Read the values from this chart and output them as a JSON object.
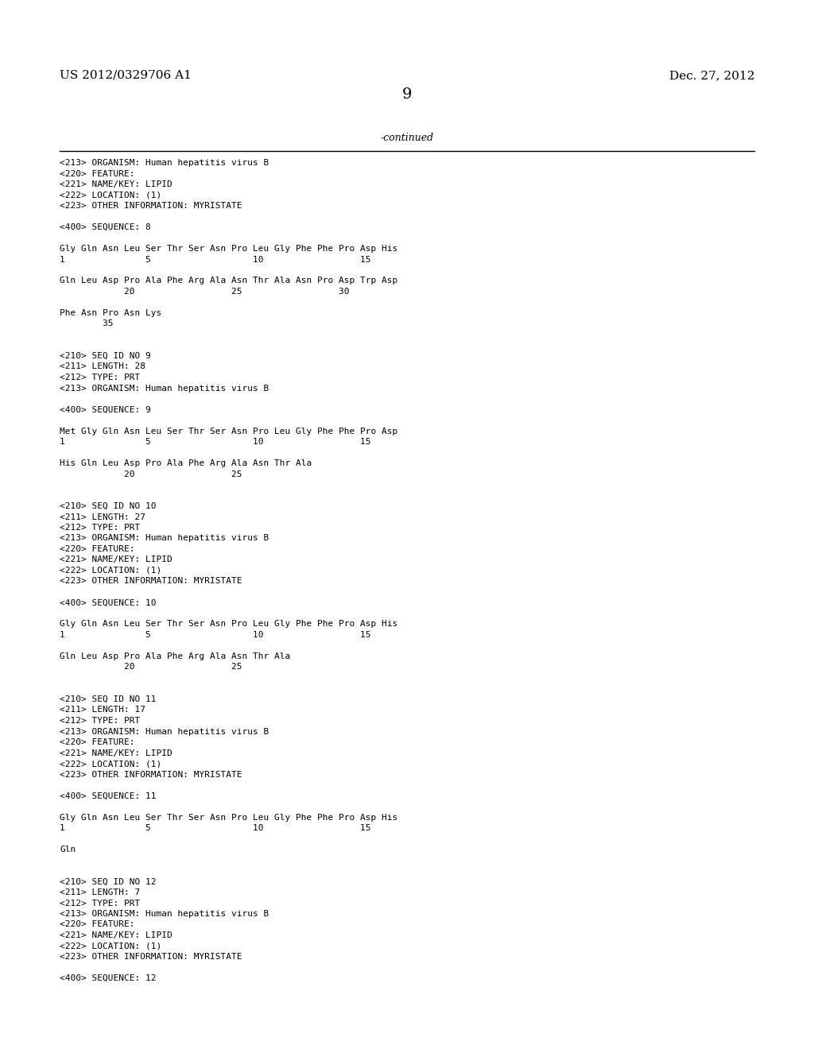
{
  "background_color": "#ffffff",
  "header_left": "US 2012/0329706 A1",
  "header_right": "Dec. 27, 2012",
  "page_number": "9",
  "continued_label": "-continued",
  "lines": [
    "<213> ORGANISM: Human hepatitis virus B",
    "<220> FEATURE:",
    "<221> NAME/KEY: LIPID",
    "<222> LOCATION: (1)",
    "<223> OTHER INFORMATION: MYRISTATE",
    "",
    "<400> SEQUENCE: 8",
    "",
    "Gly Gln Asn Leu Ser Thr Ser Asn Pro Leu Gly Phe Phe Pro Asp His",
    "1               5                   10                  15",
    "",
    "Gln Leu Asp Pro Ala Phe Arg Ala Asn Thr Ala Asn Pro Asp Trp Asp",
    "            20                  25                  30",
    "",
    "Phe Asn Pro Asn Lys",
    "        35",
    "",
    "",
    "<210> SEQ ID NO 9",
    "<211> LENGTH: 28",
    "<212> TYPE: PRT",
    "<213> ORGANISM: Human hepatitis virus B",
    "",
    "<400> SEQUENCE: 9",
    "",
    "Met Gly Gln Asn Leu Ser Thr Ser Asn Pro Leu Gly Phe Phe Pro Asp",
    "1               5                   10                  15",
    "",
    "His Gln Leu Asp Pro Ala Phe Arg Ala Asn Thr Ala",
    "            20                  25",
    "",
    "",
    "<210> SEQ ID NO 10",
    "<211> LENGTH: 27",
    "<212> TYPE: PRT",
    "<213> ORGANISM: Human hepatitis virus B",
    "<220> FEATURE:",
    "<221> NAME/KEY: LIPID",
    "<222> LOCATION: (1)",
    "<223> OTHER INFORMATION: MYRISTATE",
    "",
    "<400> SEQUENCE: 10",
    "",
    "Gly Gln Asn Leu Ser Thr Ser Asn Pro Leu Gly Phe Phe Pro Asp His",
    "1               5                   10                  15",
    "",
    "Gln Leu Asp Pro Ala Phe Arg Ala Asn Thr Ala",
    "            20                  25",
    "",
    "",
    "<210> SEQ ID NO 11",
    "<211> LENGTH: 17",
    "<212> TYPE: PRT",
    "<213> ORGANISM: Human hepatitis virus B",
    "<220> FEATURE:",
    "<221> NAME/KEY: LIPID",
    "<222> LOCATION: (1)",
    "<223> OTHER INFORMATION: MYRISTATE",
    "",
    "<400> SEQUENCE: 11",
    "",
    "Gly Gln Asn Leu Ser Thr Ser Asn Pro Leu Gly Phe Phe Pro Asp His",
    "1               5                   10                  15",
    "",
    "Gln",
    "",
    "",
    "<210> SEQ ID NO 12",
    "<211> LENGTH: 7",
    "<212> TYPE: PRT",
    "<213> ORGANISM: Human hepatitis virus B",
    "<220> FEATURE:",
    "<221> NAME/KEY: LIPID",
    "<222> LOCATION: (1)",
    "<223> OTHER INFORMATION: MYRISTATE",
    "",
    "<400> SEQUENCE: 12"
  ]
}
